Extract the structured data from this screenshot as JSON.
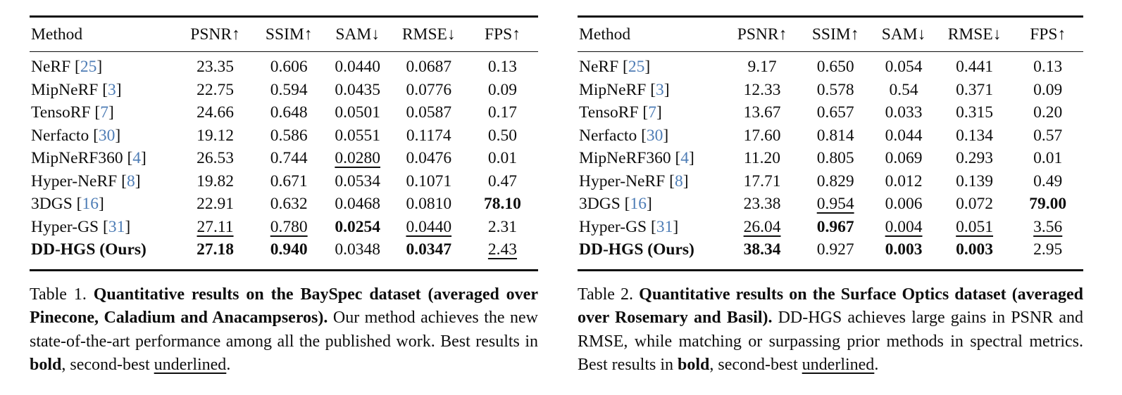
{
  "page": {
    "background": "#ffffff",
    "text_color": "#0e0e0e",
    "citation_color": "#4d7cb5"
  },
  "tables": [
    {
      "name": "bayspec-results",
      "columns": [
        "Method",
        "PSNR↑",
        "SSIM↑",
        "SAM↓",
        "RMSE↓",
        "FPS↑"
      ],
      "rows": [
        {
          "method": "NeRF",
          "cite": "25",
          "cells": [
            {
              "t": "23.35"
            },
            {
              "t": "0.606"
            },
            {
              "t": "0.0440"
            },
            {
              "t": "0.0687"
            },
            {
              "t": "0.13"
            }
          ]
        },
        {
          "method": "MipNeRF",
          "cite": "3",
          "cells": [
            {
              "t": "22.75"
            },
            {
              "t": "0.594"
            },
            {
              "t": "0.0435"
            },
            {
              "t": "0.0776"
            },
            {
              "t": "0.09"
            }
          ]
        },
        {
          "method": "TensoRF",
          "cite": "7",
          "cells": [
            {
              "t": "24.66"
            },
            {
              "t": "0.648"
            },
            {
              "t": "0.0501"
            },
            {
              "t": "0.0587"
            },
            {
              "t": "0.17"
            }
          ]
        },
        {
          "method": "Nerfacto",
          "cite": "30",
          "cells": [
            {
              "t": "19.12"
            },
            {
              "t": "0.586"
            },
            {
              "t": "0.0551"
            },
            {
              "t": "0.1174"
            },
            {
              "t": "0.50"
            }
          ]
        },
        {
          "method": "MipNeRF360",
          "cite": "4",
          "cells": [
            {
              "t": "26.53"
            },
            {
              "t": "0.744"
            },
            {
              "t": "0.0280",
              "u": true
            },
            {
              "t": "0.0476"
            },
            {
              "t": "0.01"
            }
          ]
        },
        {
          "method": "Hyper-NeRF",
          "cite": "8",
          "cells": [
            {
              "t": "19.82"
            },
            {
              "t": "0.671"
            },
            {
              "t": "0.0534"
            },
            {
              "t": "0.1071"
            },
            {
              "t": "0.47"
            }
          ]
        },
        {
          "method": "3DGS",
          "cite": "16",
          "cells": [
            {
              "t": "22.91"
            },
            {
              "t": "0.632"
            },
            {
              "t": "0.0468"
            },
            {
              "t": "0.0810"
            },
            {
              "t": "78.10",
              "b": true
            }
          ]
        },
        {
          "method": "Hyper-GS",
          "cite": "31",
          "cells": [
            {
              "t": "27.11",
              "u": true
            },
            {
              "t": "0.780",
              "u": true
            },
            {
              "t": "0.0254",
              "b": true
            },
            {
              "t": "0.0440",
              "u": true
            },
            {
              "t": "2.31"
            }
          ]
        },
        {
          "method": "DD-HGS (Ours)",
          "method_bold": true,
          "cells": [
            {
              "t": "27.18",
              "b": true
            },
            {
              "t": "0.940",
              "b": true
            },
            {
              "t": "0.0348"
            },
            {
              "t": "0.0347",
              "b": true
            },
            {
              "t": "2.43",
              "u": true
            }
          ]
        }
      ],
      "caption_parts": [
        {
          "t": "Table 1. "
        },
        {
          "t": "Quantitative results on the BaySpec dataset (averaged over Pinecone, Caladium and Anacampseros).",
          "b": true
        },
        {
          "t": " Our method achieves the new state-of-the-art performance among all the published work. Best results in "
        },
        {
          "t": "bold",
          "b": true
        },
        {
          "t": ", second-best "
        },
        {
          "t": "underlined",
          "u": true
        },
        {
          "t": "."
        }
      ]
    },
    {
      "name": "surface-optics-results",
      "columns": [
        "Method",
        "PSNR↑",
        "SSIM↑",
        "SAM↓",
        "RMSE↓",
        "FPS↑"
      ],
      "rows": [
        {
          "method": "NeRF",
          "cite": "25",
          "cells": [
            {
              "t": "9.17"
            },
            {
              "t": "0.650"
            },
            {
              "t": "0.054"
            },
            {
              "t": "0.441"
            },
            {
              "t": "0.13"
            }
          ]
        },
        {
          "method": "MipNeRF",
          "cite": "3",
          "cells": [
            {
              "t": "12.33"
            },
            {
              "t": "0.578"
            },
            {
              "t": "0.54"
            },
            {
              "t": "0.371"
            },
            {
              "t": "0.09"
            }
          ]
        },
        {
          "method": "TensoRF",
          "cite": "7",
          "cells": [
            {
              "t": "13.67"
            },
            {
              "t": "0.657"
            },
            {
              "t": "0.033"
            },
            {
              "t": "0.315"
            },
            {
              "t": "0.20"
            }
          ]
        },
        {
          "method": "Nerfacto",
          "cite": "30",
          "cells": [
            {
              "t": "17.60"
            },
            {
              "t": "0.814"
            },
            {
              "t": "0.044"
            },
            {
              "t": "0.134"
            },
            {
              "t": "0.57"
            }
          ]
        },
        {
          "method": "MipNeRF360",
          "cite": "4",
          "cells": [
            {
              "t": "11.20"
            },
            {
              "t": "0.805"
            },
            {
              "t": "0.069"
            },
            {
              "t": "0.293"
            },
            {
              "t": "0.01"
            }
          ]
        },
        {
          "method": "Hyper-NeRF",
          "cite": "8",
          "cells": [
            {
              "t": "17.71"
            },
            {
              "t": "0.829"
            },
            {
              "t": "0.012"
            },
            {
              "t": "0.139"
            },
            {
              "t": "0.49"
            }
          ]
        },
        {
          "method": "3DGS",
          "cite": "16",
          "cells": [
            {
              "t": "23.38"
            },
            {
              "t": "0.954",
              "u": true
            },
            {
              "t": "0.006"
            },
            {
              "t": "0.072"
            },
            {
              "t": "79.00",
              "b": true
            }
          ]
        },
        {
          "method": "Hyper-GS",
          "cite": "31",
          "cells": [
            {
              "t": "26.04",
              "u": true
            },
            {
              "t": "0.967",
              "b": true
            },
            {
              "t": "0.004",
              "u": true
            },
            {
              "t": "0.051",
              "u": true
            },
            {
              "t": "3.56",
              "u": true
            }
          ]
        },
        {
          "method": "DD-HGS (Ours)",
          "method_bold": true,
          "cells": [
            {
              "t": "38.34",
              "b": true
            },
            {
              "t": "0.927"
            },
            {
              "t": "0.003",
              "b": true
            },
            {
              "t": "0.003",
              "b": true
            },
            {
              "t": "2.95"
            }
          ]
        }
      ],
      "caption_parts": [
        {
          "t": "Table 2. "
        },
        {
          "t": "Quantitative results on the Surface Optics dataset (averaged over Rosemary and Basil).",
          "b": true
        },
        {
          "t": " DD-HGS achieves large gains in PSNR and RMSE, while matching or surpassing prior methods in spectral metrics. Best results in "
        },
        {
          "t": "bold",
          "b": true
        },
        {
          "t": ", second-best "
        },
        {
          "t": "underlined",
          "u": true
        },
        {
          "t": "."
        }
      ]
    }
  ]
}
